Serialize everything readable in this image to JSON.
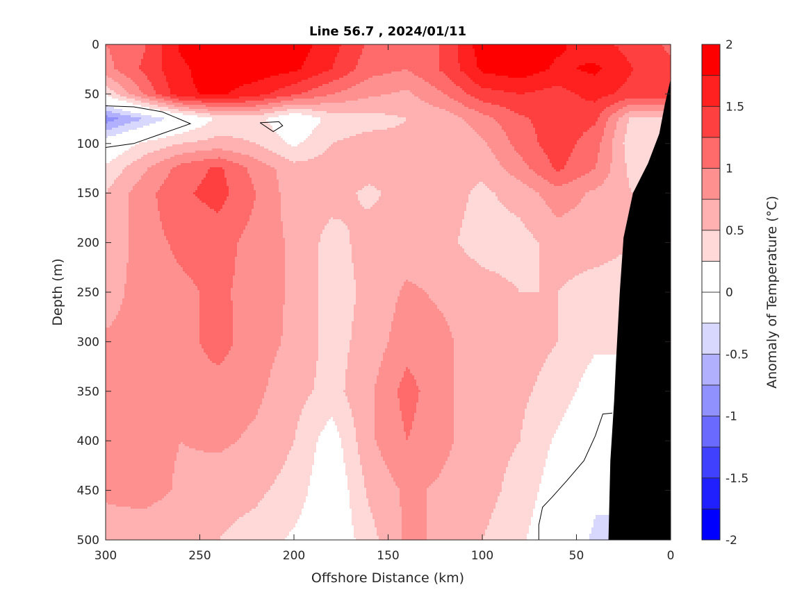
{
  "chart_data": {
    "type": "heatmap",
    "subtype": "filled-contour",
    "title": "Line 56.7 , 2024/01/11",
    "xlabel": "Offshore Distance (km)",
    "ylabel": "Depth (m)",
    "colorbar_label": "Anomaly of Temperature (°C)",
    "xlim": [
      300,
      0
    ],
    "ylim": [
      0,
      500
    ],
    "x_reversed": true,
    "y_reversed": true,
    "xticks": [
      300,
      250,
      200,
      150,
      100,
      50,
      0
    ],
    "xtick_labels": [
      "300",
      "250",
      "200",
      "150",
      "100",
      "50",
      "0"
    ],
    "yticks": [
      0,
      50,
      100,
      150,
      200,
      250,
      300,
      350,
      400,
      450,
      500
    ],
    "ytick_labels": [
      "0",
      "50",
      "100",
      "150",
      "200",
      "250",
      "300",
      "350",
      "400",
      "450",
      "500"
    ],
    "clim": [
      -2,
      2
    ],
    "level_step": 0.25,
    "colorbar_ticks": [
      2,
      1.5,
      1,
      0.5,
      0,
      -0.5,
      -1,
      -1.5,
      -2
    ],
    "colorbar_tick_labels": [
      "2",
      "1.5",
      "1",
      "0.5",
      "0",
      "-0.5",
      "-1",
      "-1.5",
      "-2"
    ],
    "colormap": [
      "#0000ff",
      "#2020ff",
      "#4040ff",
      "#6a6aff",
      "#9090ff",
      "#b0b0ff",
      "#d8d8ff",
      "#ffffff",
      "#ffffff",
      "#ffd8d8",
      "#ffb0b0",
      "#ff9090",
      "#ff6a6a",
      "#ff4040",
      "#ff2020",
      "#ff0000"
    ],
    "distance_km": [
      300,
      280,
      260,
      240,
      220,
      200,
      180,
      160,
      140,
      120,
      100,
      80,
      60,
      40,
      20,
      0
    ],
    "depth_m": [
      0,
      25,
      50,
      75,
      100,
      125,
      150,
      200,
      250,
      300,
      350,
      400,
      450,
      500
    ],
    "anomaly": [
      [
        1.0,
        1.2,
        1.8,
        1.9,
        2.0,
        1.9,
        1.6,
        1.2,
        1.0,
        1.3,
        1.9,
        1.9,
        1.8,
        1.6,
        1.4,
        1.2
      ],
      [
        0.9,
        1.3,
        1.7,
        1.9,
        1.9,
        1.8,
        1.5,
        1.1,
        1.0,
        1.3,
        1.8,
        1.9,
        1.7,
        1.8,
        1.5,
        1.3
      ],
      [
        0.3,
        1.0,
        1.7,
        1.8,
        1.6,
        1.3,
        1.0,
        0.8,
        0.7,
        1.0,
        1.4,
        1.5,
        1.4,
        1.6,
        1.4,
        1.4
      ],
      [
        -0.9,
        -0.5,
        -0.1,
        0.3,
        0.35,
        -0.05,
        0.35,
        0.4,
        0.5,
        0.6,
        0.9,
        1.2,
        1.4,
        1.3,
        0.4,
        0.4
      ],
      [
        -0.05,
        0.3,
        0.5,
        0.6,
        0.5,
        0.2,
        0.5,
        0.6,
        0.55,
        0.5,
        0.7,
        1.1,
        1.4,
        1.1,
        0.3,
        0.3
      ],
      [
        0.3,
        0.7,
        1.1,
        1.3,
        0.9,
        0.6,
        0.6,
        0.6,
        0.6,
        0.55,
        0.55,
        0.9,
        1.3,
        1.0,
        0.4,
        0.4
      ],
      [
        0.5,
        0.9,
        1.2,
        1.35,
        1.0,
        0.6,
        0.6,
        0.45,
        0.6,
        0.6,
        0.45,
        0.6,
        0.9,
        0.7,
        0.5,
        0.5
      ],
      [
        0.5,
        0.9,
        1.05,
        1.1,
        0.9,
        0.7,
        0.4,
        0.6,
        0.6,
        0.55,
        0.4,
        0.4,
        0.6,
        0.6,
        0.5,
        0.5
      ],
      [
        0.6,
        0.9,
        0.95,
        1.05,
        0.9,
        0.7,
        0.4,
        0.55,
        0.8,
        0.7,
        0.6,
        0.5,
        0.5,
        0.4,
        0.4,
        0.4
      ],
      [
        0.8,
        0.85,
        0.9,
        1.1,
        0.85,
        0.7,
        0.4,
        0.6,
        0.9,
        0.8,
        0.6,
        0.6,
        0.5,
        0.3,
        0.3,
        0.3
      ],
      [
        0.9,
        0.9,
        0.9,
        0.9,
        0.8,
        0.6,
        0.4,
        0.7,
        1.1,
        0.8,
        0.6,
        0.55,
        0.4,
        0.1,
        0.1,
        0.1
      ],
      [
        0.9,
        0.85,
        0.75,
        0.8,
        0.7,
        0.5,
        0.1,
        0.7,
        1.0,
        0.8,
        0.6,
        0.5,
        0.2,
        -0.1,
        -0.1,
        -0.1
      ],
      [
        0.8,
        0.9,
        0.7,
        0.6,
        0.55,
        0.4,
        0.0,
        0.55,
        0.8,
        0.7,
        0.6,
        0.4,
        0.1,
        -0.2,
        -0.2,
        -0.2
      ],
      [
        0.6,
        0.5,
        0.5,
        0.5,
        0.4,
        0.2,
        0.0,
        0.4,
        0.8,
        0.7,
        0.5,
        0.3,
        0.0,
        -0.3,
        -0.3,
        -0.3
      ]
    ],
    "bathymetry": [
      [
        0,
        35
      ],
      [
        3,
        60
      ],
      [
        6,
        90
      ],
      [
        12,
        120
      ],
      [
        20,
        150
      ],
      [
        25,
        195
      ],
      [
        27,
        250
      ],
      [
        29,
        320
      ],
      [
        30,
        360
      ],
      [
        32,
        420
      ],
      [
        33,
        500
      ],
      [
        0,
        500
      ]
    ],
    "zero_contours": [
      [
        [
          300,
          62
        ],
        [
          285,
          63
        ],
        [
          270,
          68
        ],
        [
          255,
          80
        ],
        [
          270,
          90
        ],
        [
          285,
          100
        ],
        [
          300,
          104
        ]
      ],
      [
        [
          218,
          79
        ],
        [
          208,
          78
        ],
        [
          206,
          82
        ],
        [
          211,
          88
        ],
        [
          218,
          79
        ]
      ],
      [
        [
          31,
          372
        ],
        [
          36,
          373
        ],
        [
          40,
          395
        ],
        [
          46,
          420
        ],
        [
          55,
          440
        ],
        [
          63,
          457
        ],
        [
          68,
          467
        ],
        [
          70,
          485
        ],
        [
          70,
          500
        ]
      ]
    ]
  }
}
